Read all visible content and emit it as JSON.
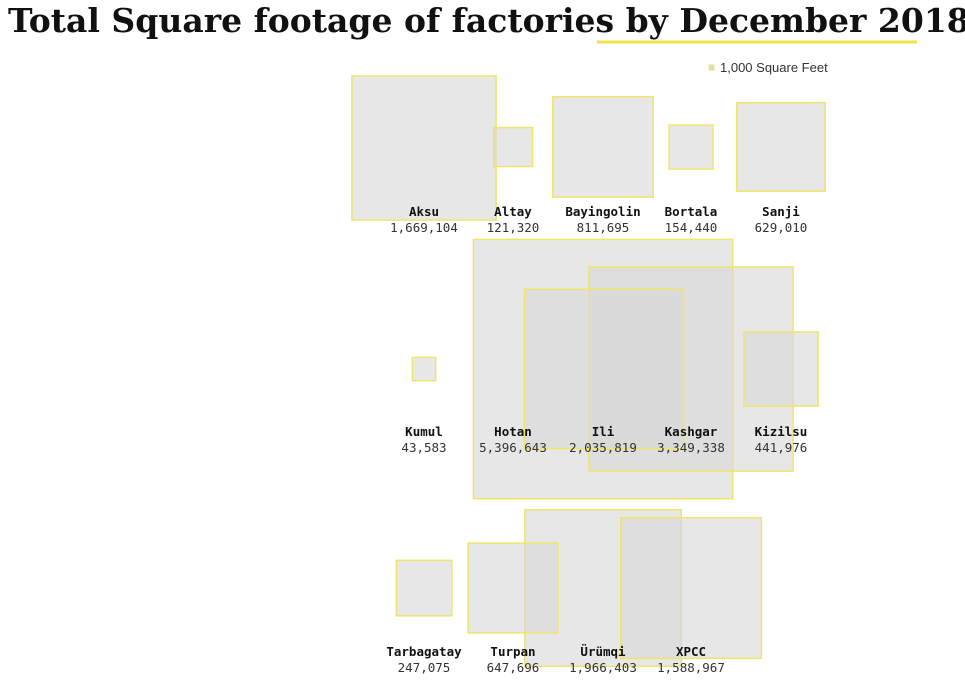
{
  "chart_data": {
    "type": "proportional-area",
    "title": "Total Square footage of factories by December 2018",
    "title_highlight": "by December 2018",
    "highlight_color": "#f2e04a",
    "square_fill": "#d9d9d9",
    "square_stroke": "#f0e56a",
    "legend": {
      "label": "1,000 Square Feet",
      "unit_value": 1000
    },
    "categories": [
      "Aksu",
      "Altay",
      "Bayingolin",
      "Bortala",
      "Sanji",
      "Kumul",
      "Hotan",
      "Ili",
      "Kashgar",
      "Kizilsu",
      "Tarbagatay",
      "Turpan",
      "Ürümqi",
      "XPCC"
    ],
    "values": [
      1669104,
      121320,
      811695,
      154440,
      629010,
      43583,
      5396643,
      2035819,
      3349338,
      441976,
      247075,
      647696,
      1966403,
      1588967
    ],
    "value_labels": [
      "1,669,104",
      "121,320",
      "811,695",
      "154,440",
      "629,010",
      "43,583",
      "5,396,643",
      "2,035,819",
      "3,349,338",
      "441,976",
      "247,075",
      "647,696",
      "1,966,403",
      "1,588,967"
    ]
  }
}
